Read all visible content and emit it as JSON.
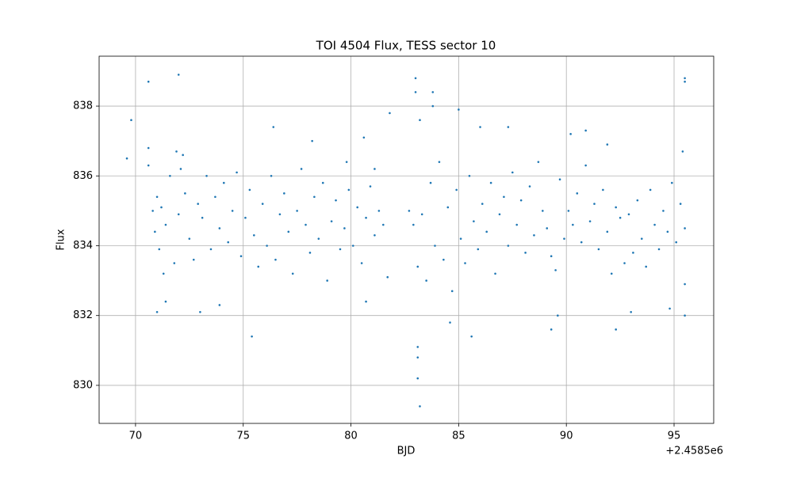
{
  "chart_data": {
    "type": "scatter",
    "title": "TOI 4504 Flux, TESS sector 10",
    "x_label": "BJD",
    "y_label": "Flux",
    "x_offset_label": "+2.4585e6",
    "color": "#1f77b4",
    "grid": true,
    "xlim": [
      68.31,
      96.84
    ],
    "ylim": [
      828.91,
      839.43
    ],
    "xticks": [
      70,
      75,
      80,
      85,
      90,
      95
    ],
    "yticks": [
      830,
      832,
      834,
      836,
      838
    ],
    "x": [
      69.6,
      69.8,
      70.6,
      70.6,
      70.6,
      72.0,
      72.1,
      72.2,
      71.9,
      71.0,
      71.4,
      71.3,
      73.0,
      73.9,
      75.4,
      76.4,
      78.2,
      79.8,
      80.6,
      81.8,
      81.1,
      80.7,
      83.0,
      83.0,
      83.1,
      83.1,
      83.1,
      83.2,
      83.2,
      83.8,
      83.8,
      84.6,
      85.0,
      85.6,
      86.0,
      87.3,
      89.3,
      89.6,
      90.2,
      90.9,
      91.9,
      92.3,
      93.0,
      94.8,
      95.4,
      95.5,
      95.5,
      95.5,
      95.5,
      70.8,
      70.9,
      71.0,
      71.1,
      71.2,
      71.4,
      71.6,
      71.8,
      72.0,
      72.3,
      72.5,
      72.7,
      72.9,
      73.1,
      73.3,
      73.5,
      73.7,
      73.9,
      74.1,
      74.3,
      74.5,
      74.7,
      74.9,
      75.1,
      75.3,
      75.5,
      75.7,
      75.9,
      76.1,
      76.3,
      76.5,
      76.7,
      76.9,
      77.1,
      77.3,
      77.5,
      77.7,
      77.9,
      78.1,
      78.3,
      78.5,
      78.7,
      78.9,
      79.1,
      79.3,
      79.5,
      79.7,
      79.9,
      80.1,
      80.3,
      80.5,
      80.7,
      80.9,
      81.1,
      81.3,
      81.5,
      81.7,
      82.7,
      82.9,
      83.1,
      83.3,
      83.5,
      83.7,
      83.9,
      84.1,
      84.3,
      84.5,
      84.7,
      84.9,
      85.1,
      85.3,
      85.5,
      85.7,
      85.9,
      86.1,
      86.3,
      86.5,
      86.7,
      86.9,
      87.1,
      87.3,
      87.5,
      87.7,
      87.9,
      88.1,
      88.3,
      88.5,
      88.7,
      88.9,
      89.1,
      89.3,
      89.5,
      89.7,
      89.9,
      90.1,
      90.3,
      90.5,
      90.7,
      90.9,
      91.1,
      91.3,
      91.5,
      91.7,
      91.9,
      92.1,
      92.3,
      92.5,
      92.7,
      92.9,
      93.1,
      93.3,
      93.5,
      93.7,
      93.9,
      94.1,
      94.3,
      94.5,
      94.7,
      94.9,
      95.1,
      95.3,
      95.5
    ],
    "values": [
      836.5,
      837.6,
      838.7,
      836.8,
      836.3,
      838.9,
      836.2,
      836.6,
      836.7,
      832.1,
      832.4,
      833.2,
      832.1,
      832.3,
      831.4,
      837.4,
      837.0,
      836.4,
      837.1,
      837.8,
      836.2,
      832.4,
      838.8,
      838.4,
      831.1,
      830.8,
      830.2,
      829.4,
      837.6,
      838.4,
      838.0,
      831.8,
      837.9,
      831.4,
      837.4,
      837.4,
      831.6,
      832.0,
      837.2,
      837.3,
      836.9,
      831.6,
      832.1,
      832.2,
      836.7,
      838.8,
      838.7,
      832.0,
      832.9,
      835.0,
      834.4,
      835.4,
      833.9,
      835.1,
      834.6,
      836.0,
      833.5,
      834.9,
      835.5,
      834.2,
      833.6,
      835.2,
      834.8,
      836.0,
      833.9,
      835.4,
      834.5,
      835.8,
      834.1,
      835.0,
      836.1,
      833.7,
      834.8,
      835.6,
      834.3,
      833.4,
      835.2,
      834.0,
      836.0,
      833.6,
      834.9,
      835.5,
      834.4,
      833.2,
      835.0,
      836.2,
      834.6,
      833.8,
      835.4,
      834.2,
      835.8,
      833.0,
      834.7,
      835.3,
      833.9,
      834.5,
      835.6,
      834.0,
      835.1,
      833.5,
      834.8,
      835.7,
      834.3,
      835.0,
      834.6,
      833.1,
      835.0,
      834.6,
      833.4,
      834.9,
      833.0,
      835.8,
      834.0,
      836.4,
      833.6,
      835.1,
      832.7,
      835.6,
      834.2,
      833.5,
      836.0,
      834.7,
      833.9,
      835.2,
      834.4,
      835.8,
      833.2,
      834.9,
      835.4,
      834.0,
      836.1,
      834.6,
      835.3,
      833.8,
      835.7,
      834.3,
      836.4,
      835.0,
      834.5,
      833.7,
      833.3,
      835.9,
      834.2,
      835.0,
      834.6,
      835.5,
      834.1,
      836.3,
      834.7,
      835.2,
      833.9,
      835.6,
      834.4,
      833.2,
      835.1,
      834.8,
      833.5,
      834.9,
      833.8,
      835.3,
      834.2,
      833.4,
      835.6,
      834.6,
      833.9,
      835.0,
      834.4,
      835.8,
      834.1,
      835.2,
      834.5
    ]
  }
}
